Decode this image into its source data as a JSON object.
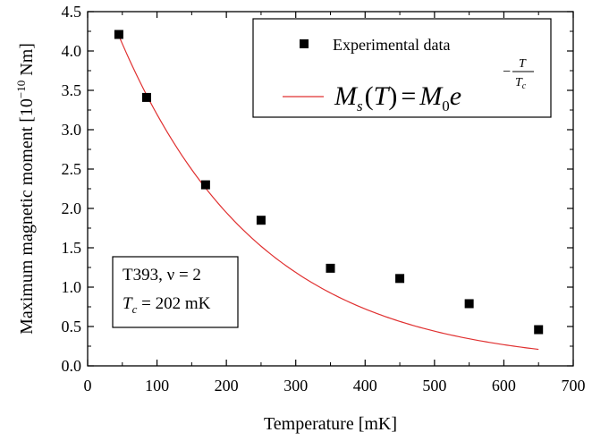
{
  "chart_data": {
    "type": "scatter",
    "xlabel": "Temperature [mK]",
    "ylabel_main": "Maximum magnetic moment [10",
    "ylabel_exp": "−10",
    "ylabel_unit": " Nm]",
    "xlim": [
      0,
      700
    ],
    "ylim": [
      0,
      4.5
    ],
    "xticks": [
      0,
      100,
      200,
      300,
      400,
      500,
      600,
      700
    ],
    "yticks": [
      0.0,
      0.5,
      1.0,
      1.5,
      2.0,
      2.5,
      3.0,
      3.5,
      4.0,
      4.5
    ],
    "xtick_labels": [
      "0",
      "100",
      "200",
      "300",
      "400",
      "500",
      "600",
      "700"
    ],
    "ytick_labels": [
      "0.0",
      "0.5",
      "1.0",
      "1.5",
      "2.0",
      "2.5",
      "3.0",
      "3.5",
      "4.0",
      "4.5"
    ],
    "series": [
      {
        "name": "Experimental data",
        "kind": "points",
        "color": "#000000",
        "x": [
          45,
          85,
          170,
          250,
          350,
          450,
          550,
          650
        ],
        "y": [
          4.21,
          3.41,
          2.3,
          1.85,
          1.24,
          1.11,
          0.79,
          0.46
        ]
      },
      {
        "kind": "fit",
        "color": "#e03030",
        "model": "exponential",
        "x_start": 45,
        "x_end": 650,
        "M0": 5.24,
        "Tc": 202
      }
    ],
    "legend": {
      "position": "top-right",
      "formula_M": "M",
      "formula_s": "s",
      "formula_T": "T",
      "formula_eq": "=",
      "formula_M0": "M",
      "formula_0": "0",
      "formula_e": "e",
      "formula_minus": "−",
      "formula_Tc_T": "T",
      "formula_Tc_c": "c"
    },
    "annotation": {
      "line1": "T393, ν = 2",
      "line2_T": "T",
      "line2_c": "c",
      "line2_rest": " = 202 mK"
    }
  }
}
